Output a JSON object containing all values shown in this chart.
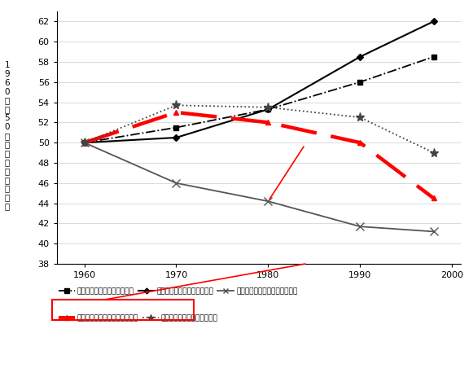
{
  "years": [
    1960,
    1970,
    1980,
    1990,
    1998
  ],
  "series": [
    {
      "label": "分析による非ルーティン業務",
      "values": [
        50,
        51.5,
        53.3,
        56.0,
        58.5
      ],
      "color": "#000000",
      "linestyle": "-.",
      "marker": "s",
      "markersize": 5,
      "linewidth": 1.3,
      "dashes": null
    },
    {
      "label": "対話による非ルーティン業務",
      "values": [
        50,
        50.5,
        53.3,
        58.5,
        62.0
      ],
      "color": "#000000",
      "linestyle": "-",
      "marker": "D",
      "markersize": 4,
      "linewidth": 1.5,
      "dashes": null
    },
    {
      "label": "手作業で行う非ルーティン業務",
      "values": [
        50,
        46.0,
        44.2,
        41.7,
        41.2
      ],
      "color": "#555555",
      "linestyle": "-",
      "marker": "x",
      "markersize": 7,
      "linewidth": 1.3,
      "dashes": null
    },
    {
      "label": "知識経験によるルーティン業務",
      "values": [
        50,
        53.0,
        52.0,
        50.0,
        44.5
      ],
      "color": "#ff0000",
      "linestyle": "--",
      "marker": "^",
      "markersize": 5,
      "linewidth": 3.2,
      "dashes": [
        10,
        4
      ]
    },
    {
      "label": "手作業で行うルーティン業務",
      "values": [
        50,
        53.7,
        53.5,
        52.5,
        49.0
      ],
      "color": "#444444",
      "linestyle": ":",
      "marker": "*",
      "markersize": 8,
      "linewidth": 1.3,
      "dashes": null
    }
  ],
  "xlim": [
    1957,
    2001
  ],
  "ylim": [
    38,
    63
  ],
  "yticks": [
    38,
    40,
    42,
    44,
    46,
    48,
    50,
    52,
    54,
    56,
    58,
    60,
    62
  ],
  "xticks": [
    1960,
    1970,
    1980,
    1990,
    2000
  ],
  "ylabel": "1\n9\n6\n0\n年\nを\n5\n0\nと\nし\nた\n場\n合\nの\n業\n務\n量",
  "background_color": "#ffffff",
  "ann_x1": 1980,
  "ann_y1": 44.2,
  "ann_x2": 1984,
  "ann_y2": 49.8
}
